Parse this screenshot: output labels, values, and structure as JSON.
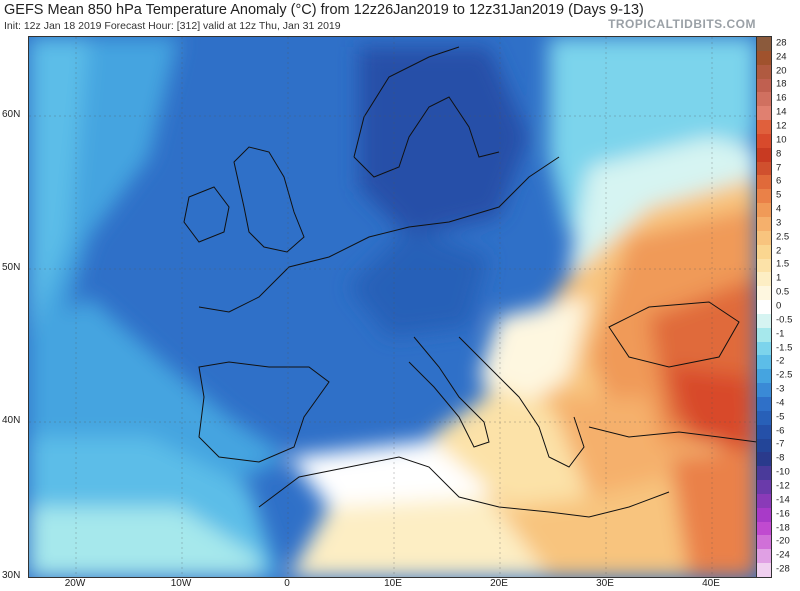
{
  "header": {
    "title": "GEFS Mean 850 hPa Temperature Anomaly (°C) from 12z26Jan2019 to 12z31Jan2019 (Days 9-13)",
    "subtitle": "Init: 12z Jan 18 2019   Forecast Hour: [312]   valid at 12z Thu, Jan 31 2019",
    "brand": "TROPICALTIDBITS.COM"
  },
  "map": {
    "region": "Europe / North Africa / Middle East",
    "lat_labels": [
      "60N",
      "50N",
      "40N",
      "30N"
    ],
    "lon_labels": [
      "20W",
      "10W",
      "0",
      "10E",
      "20E",
      "30E",
      "40E"
    ],
    "anomaly_pattern": "cold anomaly over western and central Europe, warm anomaly over Turkey, eastern Mediterranean and Middle East"
  },
  "colorbar": {
    "levels": [
      "28",
      "24",
      "20",
      "18",
      "16",
      "14",
      "12",
      "10",
      "8",
      "7",
      "6",
      "5",
      "4",
      "3",
      "2.5",
      "2",
      "1.5",
      "1",
      "0.5",
      "0",
      "-0.5",
      "-1",
      "-1.5",
      "-2",
      "-2.5",
      "-3",
      "-4",
      "-5",
      "-6",
      "-7",
      "-8",
      "-10",
      "-12",
      "-14",
      "-16",
      "-18",
      "-20",
      "-24",
      "-28"
    ],
    "colors": [
      "#8b5a3c",
      "#a0522d",
      "#b05a40",
      "#c06050",
      "#d07060",
      "#e08070",
      "#e0603c",
      "#d84a2c",
      "#c83a22",
      "#d0502e",
      "#e06a3a",
      "#ea8148",
      "#f09a58",
      "#f5b06c",
      "#f8c47e",
      "#fad690",
      "#fce2a8",
      "#fdeec4",
      "#fef7e0",
      "#ffffff",
      "#d6f4f2",
      "#a6e8ec",
      "#7cd4ec",
      "#5cbde8",
      "#45a4e0",
      "#3a8ad6",
      "#2f70c8",
      "#2860b8",
      "#2550a8",
      "#234598",
      "#2a3a8c",
      "#4a3a9a",
      "#6a3aaa",
      "#8a3ab8",
      "#a83ac8",
      "#c04ad0",
      "#d070d8",
      "#e0a0e4",
      "#f0d0f0"
    ]
  }
}
